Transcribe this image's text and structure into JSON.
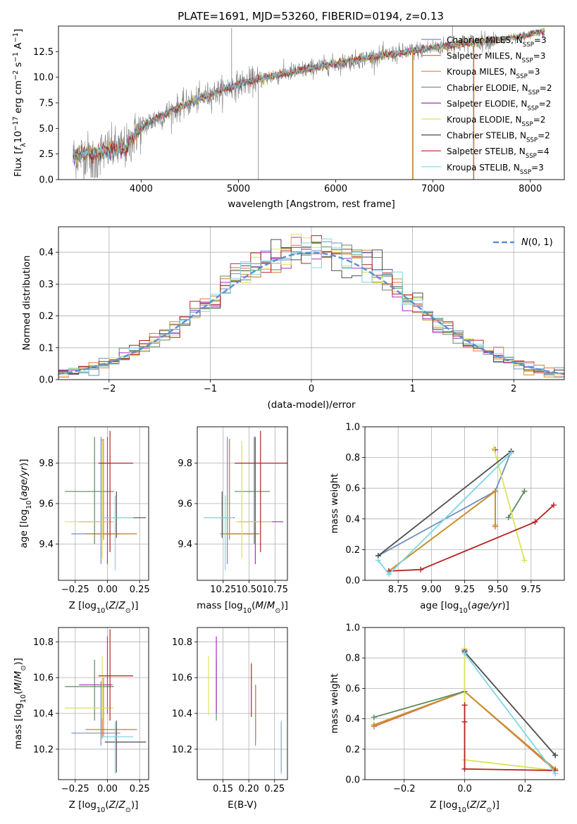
{
  "title": "PLATE=1691, MJD=53260, FIBERID=0194, z=0.13",
  "colors": {
    "Chabrier MILES": "#6f8fbf",
    "Salpeter MILES": "#e3733a",
    "Kroupa MILES": "#c6912c",
    "Chabrier ELODIE": "#5d8a5d",
    "Salpeter ELODIE": "#a52fbf",
    "Kroupa ELODIE": "#dbe25a",
    "Chabrier STELIB": "#4d4d4d",
    "Salpeter STELIB": "#b52222",
    "Kroupa STELIB": "#7fd6e3",
    "data": "#808080",
    "normal": "#5a8fd6"
  },
  "chart_data": [
    {
      "id": "spectrum",
      "type": "line",
      "title": "PLATE=1691, MJD=53260, FIBERID=0194, z=0.13",
      "xlabel": "wavelength [Angstrom, rest frame]",
      "ylabel": "Flux [f_λ 10^-17 erg cm^-2 s^-1 A^-1]",
      "xlim": [
        3150,
        8350
      ],
      "ylim": [
        0,
        15
      ],
      "xticks": [
        4000,
        5000,
        6000,
        7000,
        8000
      ],
      "yticks": [
        0.0,
        2.5,
        5.0,
        7.5,
        10.0,
        12.5
      ],
      "legend": "right",
      "series_names": [
        "Chabrier MILES, N_SSP=3",
        "Salpeter MILES, N_SSP=3",
        "Kroupa MILES, N_SSP=3",
        "Chabrier ELODIE, N_SSP=2",
        "Salpeter ELODIE, N_SSP=2",
        "Kroupa ELODIE, N_SSP=2",
        "Chabrier STELIB, N_SSP=2",
        "Salpeter STELIB, N_SSP=4",
        "Kroupa STELIB, N_SSP=3"
      ],
      "series_keys": [
        "Chabrier MILES",
        "Salpeter MILES",
        "Kroupa MILES",
        "Chabrier ELODIE",
        "Salpeter ELODIE",
        "Kroupa ELODIE",
        "Chabrier STELIB",
        "Salpeter STELIB",
        "Kroupa STELIB"
      ],
      "trend": [
        [
          3300,
          2.3
        ],
        [
          3500,
          2.6
        ],
        [
          3700,
          2.9
        ],
        [
          3850,
          3.1
        ],
        [
          3950,
          4.6
        ],
        [
          4050,
          5.4
        ],
        [
          4200,
          6.2
        ],
        [
          4400,
          7.1
        ],
        [
          4600,
          7.9
        ],
        [
          4800,
          8.6
        ],
        [
          5000,
          9.3
        ],
        [
          5200,
          9.8
        ],
        [
          5500,
          10.4
        ],
        [
          5800,
          11.0
        ],
        [
          6100,
          11.5
        ],
        [
          6400,
          12.0
        ],
        [
          6700,
          12.4
        ],
        [
          7000,
          12.9
        ],
        [
          7300,
          13.3
        ],
        [
          7600,
          13.6
        ],
        [
          7900,
          14.0
        ],
        [
          8100,
          14.4
        ]
      ],
      "spikes": [
        [
          4930,
          14.8
        ],
        [
          5205,
          0
        ],
        [
          6795,
          0
        ],
        [
          7415,
          0
        ],
        [
          7200,
          15.6
        ]
      ]
    },
    {
      "id": "residuals",
      "type": "histogram",
      "xlabel": "(data-model)/error",
      "ylabel": "Normed distribution",
      "xlim": [
        -2.5,
        2.5
      ],
      "ylim": [
        0,
        0.48
      ],
      "xticks": [
        -2,
        -1,
        0,
        1,
        2
      ],
      "yticks": [
        0.0,
        0.1,
        0.2,
        0.3,
        0.4
      ],
      "legend": "top-right",
      "legend_label": "N(0,1)",
      "bin_width": 0.1
    },
    {
      "id": "age_vs_Z",
      "type": "errorbar",
      "xlabel": "Z [log10(Z/Z_sun)]",
      "ylabel": "age [log10(age/yr)]",
      "xlim": [
        -0.38,
        0.32
      ],
      "ylim": [
        9.22,
        9.98
      ],
      "xticks": [
        -0.25,
        0.0,
        0.25
      ],
      "xtick_labels": [
        "−0.25",
        "0.00",
        "0.25"
      ],
      "yticks": [
        9.4,
        9.6,
        9.8
      ]
    },
    {
      "id": "age_vs_mass",
      "type": "errorbar",
      "xlabel": "mass [log10(M/M_sun)]",
      "ylabel": "",
      "xlim": [
        10.0,
        10.87
      ],
      "ylim": [
        9.22,
        9.98
      ],
      "xticks": [
        10.25,
        10.5,
        10.75
      ],
      "xtick_labels": [
        "10.25",
        "10.50",
        "10.75"
      ],
      "yticks": [
        9.4,
        9.6,
        9.8
      ]
    },
    {
      "id": "weight_vs_age",
      "type": "line",
      "xlabel": "age [log10(age/yr)]",
      "ylabel": "mass weight",
      "xlim": [
        8.5,
        10.0
      ],
      "ylim": [
        0,
        1.0
      ],
      "xticks": [
        8.75,
        9.0,
        9.25,
        9.5,
        9.75
      ],
      "xtick_labels": [
        "8.75",
        "9.00",
        "9.25",
        "9.50",
        "9.75"
      ],
      "yticks": [
        0.0,
        0.2,
        0.4,
        0.6,
        0.8,
        1.0
      ]
    },
    {
      "id": "mass_vs_Z",
      "type": "errorbar",
      "xlabel": "Z [log10(Z/Z_sun)]",
      "ylabel": "mass [log10(M/M_sun)]",
      "xlim": [
        -0.38,
        0.32
      ],
      "ylim": [
        10.03,
        10.88
      ],
      "xticks": [
        -0.25,
        0.0,
        0.25
      ],
      "xtick_labels": [
        "−0.25",
        "0.00",
        "0.25"
      ],
      "yticks": [
        10.2,
        10.4,
        10.6,
        10.8
      ]
    },
    {
      "id": "mass_vs_ebv",
      "type": "errorbar",
      "xlabel": "E(B-V)",
      "ylabel": "",
      "xlim": [
        0.1,
        0.275
      ],
      "ylim": [
        10.03,
        10.88
      ],
      "xticks": [
        0.15,
        0.2,
        0.25
      ],
      "xtick_labels": [
        "0.15",
        "0.20",
        "0.25"
      ],
      "yticks": [
        10.2,
        10.4,
        10.6,
        10.8
      ]
    },
    {
      "id": "weight_vs_Z",
      "type": "line",
      "xlabel": "Z [log10(Z/Z_sun)]",
      "ylabel": "mass weight",
      "xlim": [
        -0.33,
        0.33
      ],
      "ylim": [
        0,
        1.0
      ],
      "xticks": [
        -0.2,
        0.0,
        0.2
      ],
      "xtick_labels": [
        "−0.2",
        "0.0",
        "0.2"
      ],
      "yticks": [
        0.0,
        0.2,
        0.4,
        0.6,
        0.8,
        1.0
      ]
    }
  ],
  "fits": [
    {
      "key": "Chabrier MILES",
      "Z": -0.05,
      "Z_err": [
        -0.28,
        0.1
      ],
      "age": 9.45,
      "age_err": [
        9.3,
        9.93
      ],
      "mass": 10.29,
      "mass_err": [
        10.22,
        10.58
      ],
      "ebv": 0.213,
      "ebv_err": [
        10.22,
        10.56
      ],
      "ssp_age": [
        8.6,
        9.48,
        9.6
      ],
      "ssp_weight": [
        0.16,
        0.58,
        0.84
      ],
      "ssp_Z": [
        -0.3,
        0.0,
        0.3
      ],
      "ssp_zw": [
        0.35,
        0.58,
        0.06
      ]
    },
    {
      "key": "Salpeter MILES",
      "Z": -0.04,
      "Z_err": [
        -0.17,
        0.23
      ],
      "age": 9.45,
      "age_err": [
        9.43,
        9.92
      ],
      "mass": 10.31,
      "mass_err": [
        10.26,
        10.6
      ],
      "ebv": 0.213,
      "ebv_err": [
        10.25,
        10.56
      ],
      "ssp_age": [
        8.68,
        9.48,
        9.48
      ],
      "ssp_weight": [
        0.06,
        0.58,
        0.35
      ],
      "ssp_Z": [
        -0.3,
        0.0,
        0.3
      ],
      "ssp_zw": [
        0.35,
        0.58,
        0.06
      ]
    },
    {
      "key": "Kroupa MILES",
      "Z": -0.03,
      "Z_err": [
        -0.12,
        0.22
      ],
      "age": 9.45,
      "age_err": [
        9.42,
        9.92
      ],
      "mass": 10.31,
      "mass_err": [
        10.27,
        10.6
      ],
      "ebv": 0.213,
      "ebv_err": [
        10.25,
        10.55
      ],
      "ssp_age": [
        8.68,
        9.48,
        9.48
      ],
      "ssp_weight": [
        0.06,
        0.58,
        0.36
      ],
      "ssp_Z": [
        -0.3,
        0.0,
        0.3
      ],
      "ssp_zw": [
        0.36,
        0.58,
        0.07
      ]
    },
    {
      "key": "Chabrier ELODIE",
      "Z": -0.1,
      "Z_err": [
        -0.33,
        0.05
      ],
      "age": 9.66,
      "age_err": [
        9.4,
        9.93
      ],
      "mass": 10.55,
      "mass_err": [
        10.36,
        10.7
      ],
      "ebv": 0.137,
      "ebv_err": [
        10.36,
        10.7
      ],
      "ssp_age": [
        9.58,
        9.7,
        9.7
      ],
      "ssp_weight": [
        0.41,
        0.58,
        0.58
      ],
      "ssp_Z": [
        -0.3,
        0.0,
        0.0
      ],
      "ssp_zw": [
        0.41,
        0.58,
        0.58
      ]
    },
    {
      "key": "Salpeter ELODIE",
      "Z": 0.0,
      "Z_err": [
        -0.22,
        0.04
      ],
      "age": 9.51,
      "age_err": [
        9.3,
        9.93
      ],
      "mass": 10.56,
      "mass_err": [
        10.4,
        10.83
      ],
      "ebv": 0.137,
      "ebv_err": [
        10.4,
        10.83
      ],
      "ssp_age": [
        9.48,
        9.48,
        9.48
      ],
      "ssp_weight": [
        0.85,
        0.85,
        0.85
      ],
      "ssp_Z": [
        0.0,
        0.0,
        0.0
      ],
      "ssp_zw": [
        0.85,
        0.85,
        0.85
      ]
    },
    {
      "key": "Kroupa ELODIE",
      "Z": -0.04,
      "Z_err": [
        -0.33,
        0.05
      ],
      "age": 9.51,
      "age_err": [
        9.33,
        9.91
      ],
      "mass": 10.43,
      "mass_err": [
        10.37,
        10.72
      ],
      "ebv": 0.122,
      "ebv_err": [
        10.39,
        10.72
      ],
      "ssp_age": [
        9.47,
        9.7,
        9.7
      ],
      "ssp_weight": [
        0.86,
        0.13,
        0.13
      ],
      "ssp_Z": [
        0.0,
        0.0,
        0.3
      ],
      "ssp_zw": [
        0.86,
        0.13,
        0.06
      ]
    },
    {
      "key": "Chabrier STELIB",
      "Z": 0.07,
      "Z_err": [
        -0.02,
        0.3
      ],
      "age": 9.53,
      "age_err": [
        9.43,
        9.66
      ],
      "mass": 10.24,
      "mass_err": [
        10.07,
        10.36
      ],
      "ebv": 0.263,
      "ebv_err": [
        10.07,
        10.35
      ],
      "ssp_age": [
        8.6,
        9.6,
        9.6
      ],
      "ssp_weight": [
        0.16,
        0.84,
        0.84
      ],
      "ssp_Z": [
        0.0,
        0.3,
        0.3
      ],
      "ssp_zw": [
        0.84,
        0.16,
        0.16
      ]
    },
    {
      "key": "Salpeter STELIB",
      "Z": 0.02,
      "Z_err": [
        -0.07,
        0.2
      ],
      "age": 9.8,
      "age_err": [
        9.36,
        9.96
      ],
      "mass": 10.61,
      "mass_err": [
        10.36,
        10.87
      ],
      "ebv": 0.205,
      "ebv_err": [
        10.38,
        10.68
      ],
      "ssp_age": [
        8.68,
        8.92,
        9.78,
        9.92
      ],
      "ssp_weight": [
        0.06,
        0.07,
        0.38,
        0.49
      ],
      "ssp_Z": [
        0.0,
        0.0,
        0.0,
        0.3
      ],
      "ssp_zw": [
        0.49,
        0.38,
        0.07,
        0.06
      ]
    },
    {
      "key": "Kroupa STELIB",
      "Z": 0.06,
      "Z_err": [
        -0.05,
        0.2
      ],
      "age": 9.53,
      "age_err": [
        9.27,
        9.64
      ],
      "mass": 10.27,
      "mass_err": [
        10.06,
        10.35
      ],
      "ebv": 0.263,
      "ebv_err": [
        10.06,
        10.36
      ],
      "ssp_age": [
        8.6,
        8.68,
        9.6
      ],
      "ssp_weight": [
        0.13,
        0.04,
        0.83
      ],
      "ssp_Z": [
        0.0,
        0.3,
        0.3
      ],
      "ssp_zw": [
        0.83,
        0.04,
        0.04
      ]
    }
  ]
}
